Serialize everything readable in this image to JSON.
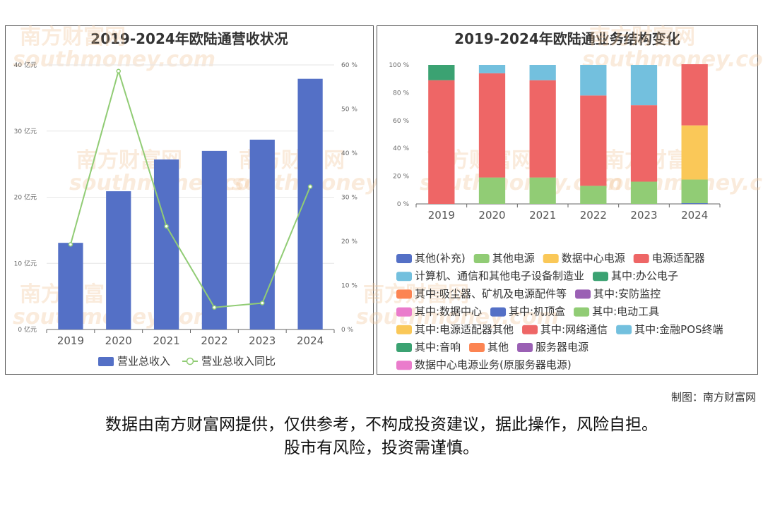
{
  "watermark": {
    "cn": "南方财富网",
    "en": "southmoney.com"
  },
  "chart_data": [
    {
      "type": "bar+line",
      "title": "2019-2024年欧陆通营收状况",
      "categories": [
        "2019",
        "2020",
        "2021",
        "2022",
        "2023",
        "2024"
      ],
      "y_left": {
        "ticks": [
          "0 亿元",
          "10 亿元",
          "20 亿元",
          "30 亿元",
          "40 亿元"
        ],
        "range": [
          0,
          40
        ]
      },
      "y_right": {
        "ticks": [
          "0 %",
          "10 %",
          "20 %",
          "30 %",
          "40 %",
          "50 %",
          "60 %"
        ],
        "range": [
          0,
          60
        ]
      },
      "series": [
        {
          "name": "营业总收入",
          "kind": "bar",
          "axis": "left",
          "color": "#5470c6",
          "values": [
            13.1,
            20.9,
            25.7,
            27.0,
            28.7,
            37.9
          ]
        },
        {
          "name": "营业总收入同比",
          "kind": "line",
          "axis": "right",
          "color": "#91cc75",
          "values": [
            19.3,
            58.6,
            23.4,
            5.0,
            6.0,
            32.4
          ]
        }
      ],
      "grid": true,
      "legend": "bottom"
    },
    {
      "type": "stacked-bar",
      "title": "2019-2024年欧陆通业务结构变化",
      "categories": [
        "2019",
        "2020",
        "2021",
        "2022",
        "2023",
        "2024"
      ],
      "y": {
        "ticks": [
          "0 %",
          "20 %",
          "40 %",
          "60 %",
          "80 %",
          "100 %"
        ],
        "range": [
          0,
          100
        ]
      },
      "series": [
        {
          "name": "其他(补充)",
          "color": "#5470c6",
          "values": [
            0,
            0,
            0,
            0,
            0,
            0.5
          ]
        },
        {
          "name": "其他电源",
          "color": "#91cc75",
          "values": [
            0,
            19,
            19,
            13,
            16,
            17
          ]
        },
        {
          "name": "数据中心电源",
          "color": "#fac858",
          "values": [
            0,
            0,
            0,
            0,
            0,
            39
          ]
        },
        {
          "name": "电源适配器",
          "color": "#ee6666",
          "values": [
            89,
            75,
            70,
            65,
            55,
            44
          ]
        },
        {
          "name": "计算机、通信和其他电子设备制造业",
          "color": "#73c0de",
          "values": [
            0,
            6,
            11,
            22,
            29,
            0
          ]
        },
        {
          "name": "其中:办公电子",
          "color": "#3ba272",
          "values": [
            11,
            0,
            0,
            0,
            0,
            0
          ]
        },
        {
          "name": "其中:吸尘器、矿机及电源配件等",
          "color": "#fc8452",
          "values": [
            0,
            0,
            0,
            0,
            0,
            0
          ]
        },
        {
          "name": "其中:安防监控",
          "color": "#9a60b4",
          "values": [
            0,
            0,
            0,
            0,
            0,
            0
          ]
        },
        {
          "name": "其中:数据中心",
          "color": "#ea7ccc",
          "values": [
            0,
            0,
            0,
            0,
            0,
            0
          ]
        },
        {
          "name": "其中:机顶盒",
          "color": "#5470c6",
          "values": [
            0,
            0,
            0,
            0,
            0,
            0
          ]
        },
        {
          "name": "其中:电动工具",
          "color": "#91cc75",
          "values": [
            0,
            0,
            0,
            0,
            0,
            0
          ]
        },
        {
          "name": "其中:电源适配器其他",
          "color": "#fac858",
          "values": [
            0,
            0,
            0,
            0,
            0,
            0
          ]
        },
        {
          "name": "其中:网络通信",
          "color": "#ee6666",
          "values": [
            0,
            0,
            0,
            0,
            0,
            0
          ]
        },
        {
          "name": "其中:金融POS终端",
          "color": "#73c0de",
          "values": [
            0,
            0,
            0,
            0,
            0,
            0
          ]
        },
        {
          "name": "其中:音响",
          "color": "#3ba272",
          "values": [
            0,
            0,
            0,
            0,
            0,
            0
          ]
        },
        {
          "name": "其他",
          "color": "#fc8452",
          "values": [
            0,
            0,
            0,
            0,
            0,
            0
          ]
        },
        {
          "name": "服务器电源",
          "color": "#9a60b4",
          "values": [
            0,
            0,
            0,
            0,
            0,
            0
          ]
        },
        {
          "name": "数据中心电源业务(原服务器电源)",
          "color": "#ea7ccc",
          "values": [
            0,
            0,
            0,
            0,
            0,
            0
          ]
        }
      ],
      "legend": "bottom"
    }
  ],
  "footer": {
    "credit": "制图：南方财富网",
    "disclaimer_line1": "数据由南方财富网提供，仅供参考，不构成投资建议，据此操作，风险自担。",
    "disclaimer_line2": "股市有风险，投资需谨慎。"
  }
}
